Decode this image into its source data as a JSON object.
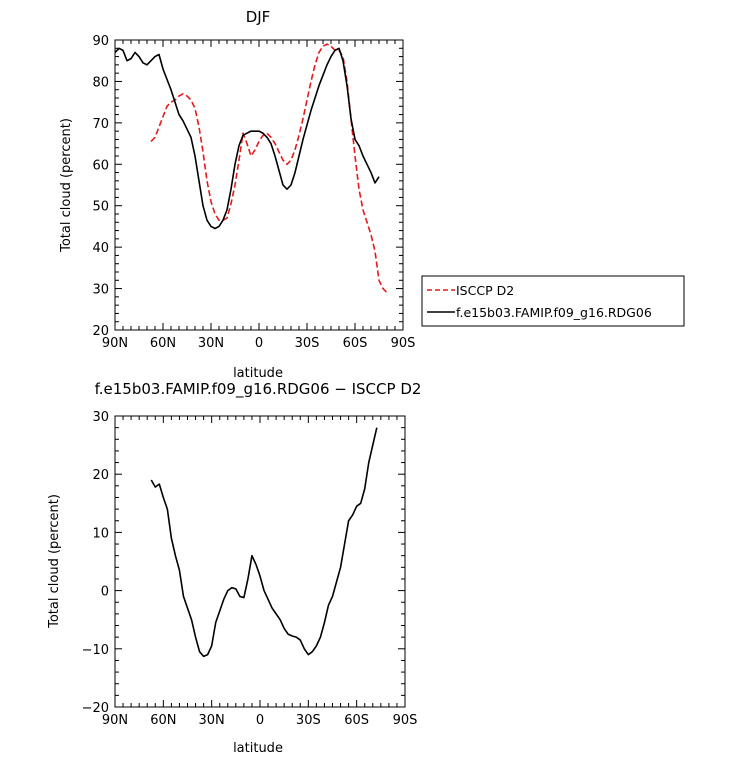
{
  "chart_data": [
    {
      "type": "line",
      "title": "DJF",
      "xlabel": "latitude",
      "ylabel": "Total cloud (percent)",
      "xlim": [
        90,
        -90
      ],
      "ylim": [
        20,
        90
      ],
      "xticks": [
        90,
        60,
        30,
        0,
        -30,
        -60,
        -90
      ],
      "xtick_labels": [
        "90N",
        "60N",
        "30N",
        "0",
        "30S",
        "60S",
        "90S"
      ],
      "yticks": [
        20,
        30,
        40,
        50,
        60,
        70,
        80,
        90
      ],
      "ytick_labels": [
        "20",
        "30",
        "40",
        "50",
        "60",
        "70",
        "80",
        "90"
      ],
      "legend_position": "right",
      "series": [
        {
          "name": "ISCCP D2",
          "color": "#e41a1c",
          "dash": "dashed",
          "points": [
            [
              67.5,
              65.5
            ],
            [
              65,
              66.5
            ],
            [
              62.5,
              69
            ],
            [
              60,
              71.5
            ],
            [
              57.5,
              74
            ],
            [
              55,
              75
            ],
            [
              52.5,
              75.5
            ],
            [
              50,
              76.5
            ],
            [
              47.5,
              77
            ],
            [
              45,
              76.5
            ],
            [
              42.5,
              75.5
            ],
            [
              40,
              73.5
            ],
            [
              37.5,
              69
            ],
            [
              35,
              63
            ],
            [
              32.5,
              56
            ],
            [
              30,
              51
            ],
            [
              27.5,
              48
            ],
            [
              25,
              46.5
            ],
            [
              22.5,
              46.5
            ],
            [
              20,
              47
            ],
            [
              17.5,
              50.5
            ],
            [
              15,
              55
            ],
            [
              12.5,
              61
            ],
            [
              10,
              67.5
            ],
            [
              7.5,
              65
            ],
            [
              5,
              62
            ],
            [
              2.5,
              63.5
            ],
            [
              0,
              65.5
            ],
            [
              -2.5,
              67
            ],
            [
              -5,
              67.5
            ],
            [
              -7.5,
              66.5
            ],
            [
              -10,
              65
            ],
            [
              -12.5,
              63
            ],
            [
              -15,
              61
            ],
            [
              -17.5,
              60
            ],
            [
              -20,
              61
            ],
            [
              -22.5,
              63.5
            ],
            [
              -25,
              67
            ],
            [
              -27.5,
              71
            ],
            [
              -30,
              75.5
            ],
            [
              -32.5,
              80
            ],
            [
              -35,
              84
            ],
            [
              -37.5,
              87
            ],
            [
              -40,
              88.5
            ],
            [
              -42.5,
              89
            ],
            [
              -45,
              88.5
            ],
            [
              -47.5,
              87.5
            ],
            [
              -50,
              87.5
            ],
            [
              -52.5,
              86
            ],
            [
              -55,
              80
            ],
            [
              -57.5,
              71
            ],
            [
              -60,
              62
            ],
            [
              -62.5,
              54
            ],
            [
              -65,
              49
            ],
            [
              -67.5,
              46
            ],
            [
              -70,
              43
            ],
            [
              -72.5,
              39
            ],
            [
              -75,
              32
            ],
            [
              -77.5,
              30
            ],
            [
              -80,
              29
            ]
          ]
        },
        {
          "name": "f.e15b03.FAMIP.f09_g16.RDG06",
          "color": "#000000",
          "dash": "solid",
          "points": [
            [
              90,
              87
            ],
            [
              87.5,
              88
            ],
            [
              85,
              87.5
            ],
            [
              82.5,
              85
            ],
            [
              80,
              85.5
            ],
            [
              77.5,
              87
            ],
            [
              75,
              86
            ],
            [
              72.5,
              84.5
            ],
            [
              70,
              84
            ],
            [
              67.5,
              85
            ],
            [
              65,
              86
            ],
            [
              62.5,
              86.5
            ],
            [
              60,
              83
            ],
            [
              57.5,
              80.5
            ],
            [
              55,
              78
            ],
            [
              52.5,
              75
            ],
            [
              50,
              72
            ],
            [
              47.5,
              70.5
            ],
            [
              45,
              68.5
            ],
            [
              42.5,
              66.5
            ],
            [
              40,
              62
            ],
            [
              37.5,
              56
            ],
            [
              35,
              50
            ],
            [
              32.5,
              46.5
            ],
            [
              30,
              45
            ],
            [
              27.5,
              44.5
            ],
            [
              25,
              45
            ],
            [
              22.5,
              46.5
            ],
            [
              20,
              49
            ],
            [
              17.5,
              54
            ],
            [
              15,
              60
            ],
            [
              12.5,
              64.5
            ],
            [
              10,
              67
            ],
            [
              7.5,
              67.5
            ],
            [
              5,
              68
            ],
            [
              2.5,
              68
            ],
            [
              0,
              68
            ],
            [
              -2.5,
              67.5
            ],
            [
              -5,
              66.5
            ],
            [
              -7.5,
              65
            ],
            [
              -10,
              62
            ],
            [
              -12.5,
              58.5
            ],
            [
              -15,
              55
            ],
            [
              -17.5,
              54
            ],
            [
              -20,
              55
            ],
            [
              -22.5,
              58
            ],
            [
              -25,
              62
            ],
            [
              -27.5,
              66
            ],
            [
              -30,
              69.5
            ],
            [
              -32.5,
              73
            ],
            [
              -35,
              76
            ],
            [
              -37.5,
              79
            ],
            [
              -40,
              81.5
            ],
            [
              -42.5,
              84
            ],
            [
              -45,
              86
            ],
            [
              -47.5,
              87.5
            ],
            [
              -50,
              88
            ],
            [
              -52.5,
              85
            ],
            [
              -55,
              79
            ],
            [
              -57.5,
              71
            ],
            [
              -60,
              66
            ],
            [
              -62.5,
              64.5
            ],
            [
              -65,
              62
            ],
            [
              -67.5,
              60
            ],
            [
              -70,
              58
            ],
            [
              -72.5,
              55.5
            ],
            [
              -75,
              57
            ]
          ]
        }
      ]
    },
    {
      "type": "line",
      "title": "f.e15b03.FAMIP.f09_g16.RDG06 − ISCCP D2",
      "xlabel": "latitude",
      "ylabel": "Total cloud (percent)",
      "xlim": [
        90,
        -90
      ],
      "ylim": [
        -20,
        30
      ],
      "xticks": [
        90,
        60,
        30,
        0,
        -30,
        -60,
        -90
      ],
      "xtick_labels": [
        "90N",
        "60N",
        "30N",
        "0",
        "30S",
        "60S",
        "90S"
      ],
      "yticks": [
        -20,
        -10,
        0,
        10,
        20,
        30
      ],
      "ytick_labels": [
        "−20",
        "−10",
        "0",
        "10",
        "20",
        "30"
      ],
      "series": [
        {
          "name": "",
          "color": "#000000",
          "dash": "solid",
          "points": [
            [
              67.5,
              19
            ],
            [
              65,
              17.8
            ],
            [
              62.5,
              18.3
            ],
            [
              60,
              16
            ],
            [
              57.5,
              14
            ],
            [
              55,
              9
            ],
            [
              52.5,
              6
            ],
            [
              50,
              3.5
            ],
            [
              47.5,
              -1
            ],
            [
              45,
              -3
            ],
            [
              42.5,
              -5
            ],
            [
              40,
              -8
            ],
            [
              37.5,
              -10.5
            ],
            [
              35,
              -11.3
            ],
            [
              32.5,
              -11
            ],
            [
              30,
              -9.5
            ],
            [
              27.5,
              -5.5
            ],
            [
              25,
              -3.5
            ],
            [
              22.5,
              -1.5
            ],
            [
              20,
              0
            ],
            [
              17.5,
              0.5
            ],
            [
              15,
              0.3
            ],
            [
              12.5,
              -1
            ],
            [
              10,
              -1.2
            ],
            [
              7.5,
              2
            ],
            [
              5,
              6
            ],
            [
              2.5,
              4.5
            ],
            [
              0,
              2.5
            ],
            [
              -2.5,
              0
            ],
            [
              -5,
              -1.5
            ],
            [
              -7.5,
              -3
            ],
            [
              -10,
              -4
            ],
            [
              -12.5,
              -5
            ],
            [
              -15,
              -6.5
            ],
            [
              -17.5,
              -7.5
            ],
            [
              -20,
              -7.8
            ],
            [
              -22.5,
              -8
            ],
            [
              -25,
              -8.5
            ],
            [
              -27.5,
              -10
            ],
            [
              -30,
              -11
            ],
            [
              -32.5,
              -10.5
            ],
            [
              -35,
              -9.5
            ],
            [
              -37.5,
              -8
            ],
            [
              -40,
              -5.5
            ],
            [
              -42.5,
              -2.5
            ],
            [
              -45,
              -1
            ],
            [
              -47.5,
              1.5
            ],
            [
              -50,
              4
            ],
            [
              -52.5,
              8
            ],
            [
              -55,
              12
            ],
            [
              -57.5,
              13
            ],
            [
              -60,
              14.5
            ],
            [
              -62.5,
              15
            ],
            [
              -65,
              17.5
            ],
            [
              -67.5,
              22
            ],
            [
              -70,
              25
            ],
            [
              -72.5,
              28
            ]
          ]
        }
      ]
    }
  ]
}
